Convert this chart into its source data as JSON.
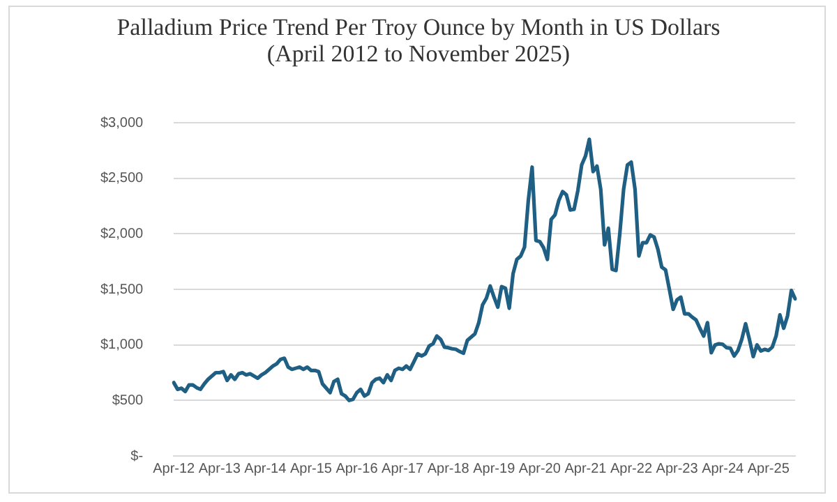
{
  "chart_data": {
    "type": "line",
    "title": "Palladium Price Trend Per Troy Ounce by Month in US Dollars",
    "subtitle": "(April 2012 to November 2025)",
    "categories": [
      "Apr-12",
      null,
      null,
      null,
      null,
      null,
      null,
      null,
      null,
      null,
      null,
      null,
      "Apr-13",
      null,
      null,
      null,
      null,
      null,
      null,
      null,
      null,
      null,
      null,
      null,
      "Apr-14",
      null,
      null,
      null,
      null,
      null,
      null,
      null,
      null,
      null,
      null,
      null,
      "Apr-15",
      null,
      null,
      null,
      null,
      null,
      null,
      null,
      null,
      null,
      null,
      null,
      "Apr-16",
      null,
      null,
      null,
      null,
      null,
      null,
      null,
      null,
      null,
      null,
      null,
      "Apr-17",
      null,
      null,
      null,
      null,
      null,
      null,
      null,
      null,
      null,
      null,
      null,
      "Apr-18",
      null,
      null,
      null,
      null,
      null,
      null,
      null,
      null,
      null,
      null,
      null,
      "Apr-19",
      null,
      null,
      null,
      null,
      null,
      null,
      null,
      null,
      null,
      null,
      null,
      "Apr-20",
      null,
      null,
      null,
      null,
      null,
      null,
      null,
      null,
      null,
      null,
      null,
      "Apr-21",
      null,
      null,
      null,
      null,
      null,
      null,
      null,
      null,
      null,
      null,
      null,
      "Apr-22",
      null,
      null,
      null,
      null,
      null,
      null,
      null,
      null,
      null,
      null,
      null,
      "Apr-23",
      null,
      null,
      null,
      null,
      null,
      null,
      null,
      null,
      null,
      null,
      null,
      "Apr-24",
      null,
      null,
      null,
      null,
      null,
      null,
      null,
      null,
      null,
      null,
      null,
      "Apr-25",
      null,
      null,
      null,
      null,
      null,
      null,
      null
    ],
    "series": [
      {
        "color": "#1f5f84",
        "values": [
          660,
          600,
          610,
          580,
          640,
          640,
          615,
          600,
          650,
          690,
          720,
          750,
          750,
          760,
          680,
          730,
          690,
          740,
          750,
          730,
          740,
          720,
          700,
          730,
          750,
          780,
          810,
          830,
          870,
          880,
          800,
          780,
          790,
          800,
          780,
          800,
          770,
          770,
          760,
          650,
          610,
          570,
          670,
          690,
          560,
          540,
          500,
          510,
          570,
          600,
          540,
          560,
          660,
          690,
          700,
          660,
          730,
          680,
          770,
          790,
          780,
          810,
          780,
          850,
          920,
          900,
          920,
          990,
          1010,
          1080,
          1050,
          980,
          975,
          965,
          960,
          940,
          925,
          1040,
          1070,
          1100,
          1200,
          1360,
          1420,
          1530,
          1430,
          1340,
          1525,
          1510,
          1330,
          1640,
          1770,
          1800,
          1880,
          2300,
          2600,
          1940,
          1930,
          1875,
          1770,
          2130,
          2170,
          2300,
          2380,
          2350,
          2215,
          2220,
          2390,
          2620,
          2700,
          2850,
          2560,
          2610,
          2400,
          1900,
          2050,
          1680,
          1670,
          2000,
          2400,
          2620,
          2645,
          2400,
          1800,
          1920,
          1920,
          1990,
          1970,
          1860,
          1700,
          1675,
          1500,
          1320,
          1405,
          1430,
          1280,
          1280,
          1250,
          1225,
          1150,
          1080,
          1200,
          930,
          1000,
          1010,
          1005,
          975,
          970,
          900,
          950,
          1050,
          1190,
          1050,
          895,
          1000,
          945,
          960,
          950,
          980,
          1080,
          1270,
          1150,
          1260,
          1490,
          1415
        ]
      }
    ],
    "ylim": [
      0,
      3000
    ],
    "yticks": [
      {
        "value": 0,
        "label": "$-"
      },
      {
        "value": 500,
        "label": "$500"
      },
      {
        "value": 1000,
        "label": "$1,000"
      },
      {
        "value": 1500,
        "label": "$1,500"
      },
      {
        "value": 2000,
        "label": "$2,000"
      },
      {
        "value": 2500,
        "label": "$2,500"
      },
      {
        "value": 3000,
        "label": "$3,000"
      }
    ],
    "grid": "y",
    "legend": false,
    "marker": "none",
    "line_style": "solid"
  }
}
